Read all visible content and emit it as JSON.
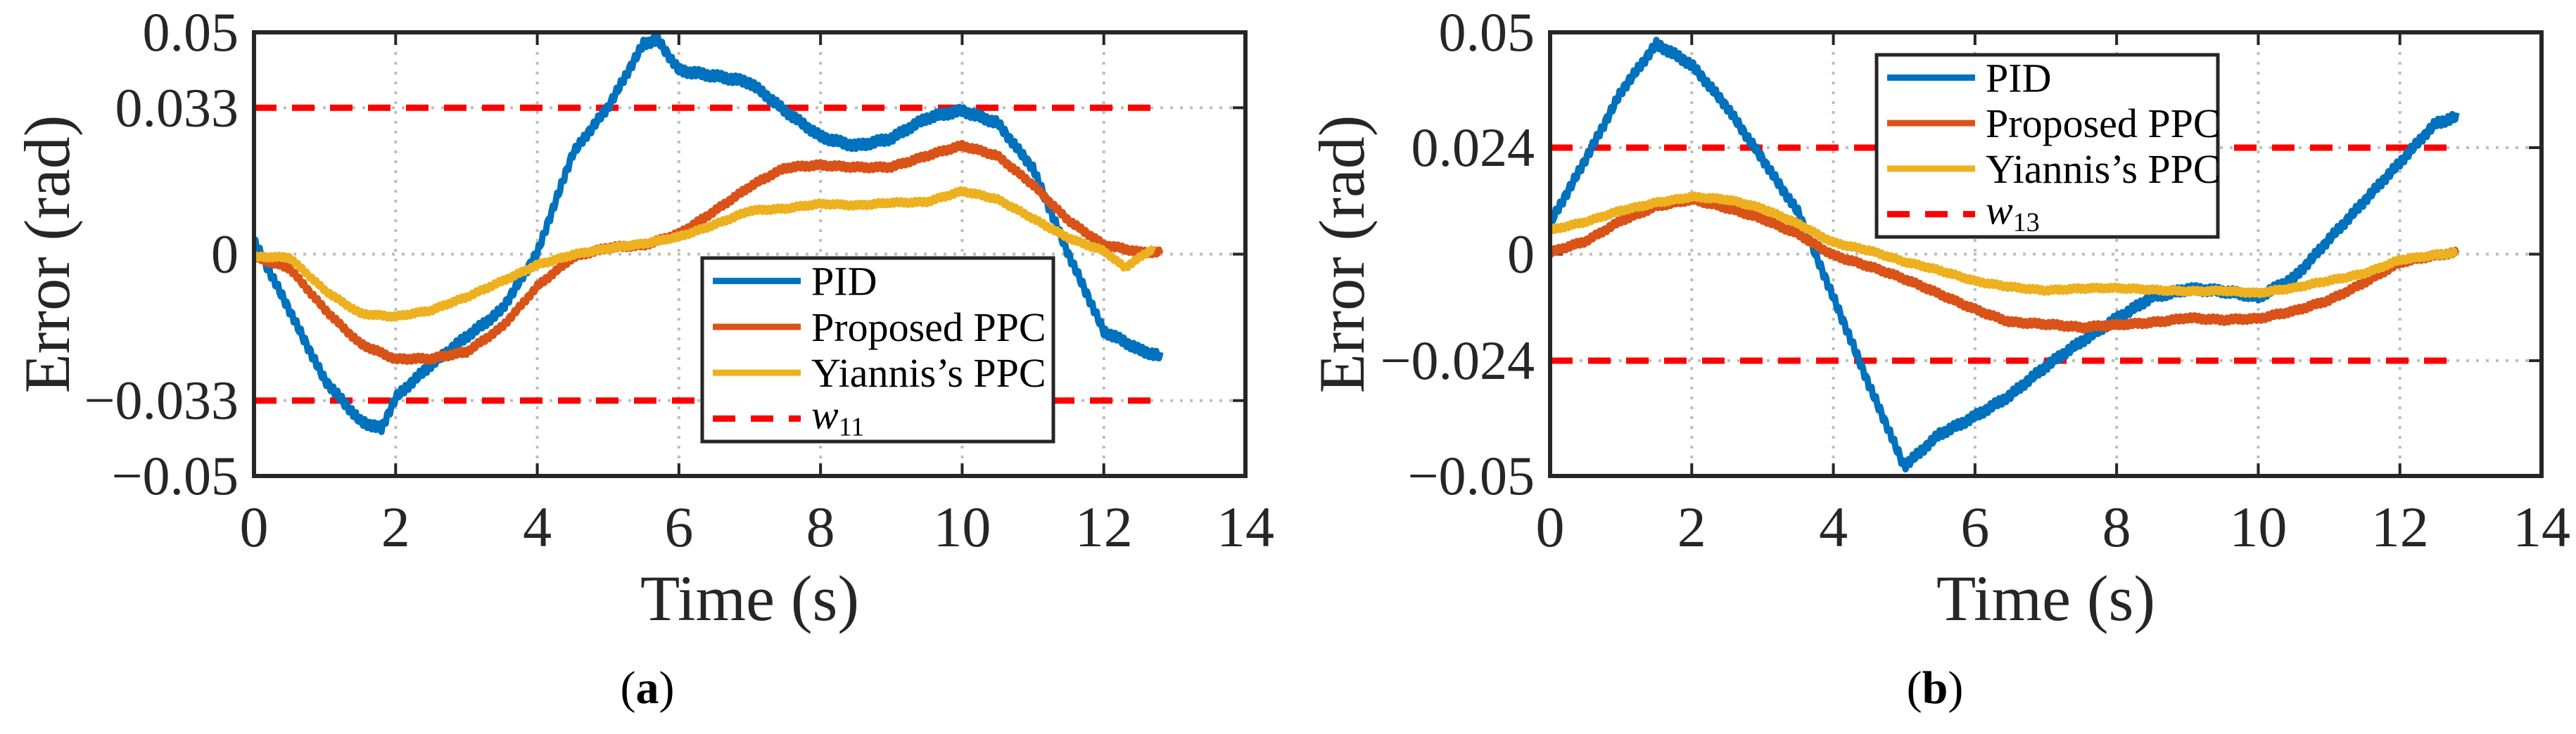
{
  "chart_data": [
    {
      "type": "line",
      "panel_label": "(a)",
      "caption_letter": "a",
      "xlabel": "Time (s)",
      "ylabel": "Error (rad)",
      "xlim": [
        0,
        14
      ],
      "ylim": [
        -0.05,
        0.05
      ],
      "xticks": [
        "0",
        "2",
        "4",
        "6",
        "8",
        "10",
        "12",
        "14"
      ],
      "yticks": [
        {
          "v": 0.05,
          "label": "0.05"
        },
        {
          "v": 0.033,
          "label": "0.033"
        },
        {
          "v": 0,
          "label": "0"
        },
        {
          "v": -0.033,
          "label": "−0.033"
        },
        {
          "v": -0.05,
          "label": "−0.05"
        }
      ],
      "grid": true,
      "legend_placement": "center-right",
      "bound": 0.033,
      "bound_label": {
        "base": "w",
        "sub": "11"
      },
      "series": [
        {
          "name": "PID",
          "color": "#0072BD",
          "x": [
            0,
            0.5,
            1,
            1.5,
            1.8,
            2,
            2.5,
            3,
            3.5,
            4,
            4.5,
            5,
            5.5,
            5.7,
            6,
            6.5,
            7,
            7.5,
            8,
            8.5,
            9,
            9.5,
            10,
            10.5,
            11,
            11.5,
            12,
            12.5,
            12.8
          ],
          "y": [
            0.003,
            -0.012,
            -0.028,
            -0.038,
            -0.04,
            -0.033,
            -0.025,
            -0.018,
            -0.012,
            0.0,
            0.022,
            0.033,
            0.048,
            0.049,
            0.042,
            0.04,
            0.038,
            0.032,
            0.027,
            0.025,
            0.026,
            0.03,
            0.032,
            0.03,
            0.02,
            0.0,
            -0.018,
            -0.022,
            -0.023
          ]
        },
        {
          "name": "Proposed PPC",
          "color": "#D95319",
          "x": [
            0,
            0.5,
            1,
            1.5,
            2,
            2.5,
            3,
            3.5,
            4,
            4.5,
            5,
            5.5,
            6,
            6.5,
            7,
            7.5,
            8,
            8.5,
            9,
            9.5,
            10,
            10.5,
            11,
            11.5,
            12,
            12.5,
            12.8
          ],
          "y": [
            -0.001,
            -0.003,
            -0.012,
            -0.02,
            -0.024,
            -0.024,
            -0.022,
            -0.016,
            -0.007,
            -0.001,
            0.001,
            0.002,
            0.005,
            0.01,
            0.015,
            0.019,
            0.02,
            0.02,
            0.02,
            0.022,
            0.024,
            0.022,
            0.016,
            0.008,
            0.002,
            0.0,
            0.0
          ]
        },
        {
          "name": "Yiannis’s PPC",
          "color": "#EDB120",
          "x": [
            0,
            0.5,
            1,
            1.5,
            2,
            2.5,
            3,
            3.5,
            4,
            4.5,
            5,
            5.5,
            6,
            6.5,
            7,
            7.5,
            8,
            8.5,
            9,
            9.5,
            10,
            10.5,
            11,
            11.5,
            12,
            12.3,
            12.7
          ],
          "y": [
            -0.001,
            -0.001,
            -0.008,
            -0.013,
            -0.014,
            -0.013,
            -0.01,
            -0.006,
            -0.002,
            0.0,
            0.001,
            0.002,
            0.004,
            0.007,
            0.01,
            0.01,
            0.011,
            0.011,
            0.012,
            0.012,
            0.014,
            0.012,
            0.008,
            0.004,
            0.001,
            -0.003,
            0.001
          ]
        }
      ]
    },
    {
      "type": "line",
      "panel_label": "(b)",
      "caption_letter": "b",
      "xlabel": "Time (s)",
      "ylabel": "Error (rad)",
      "xlim": [
        0,
        14
      ],
      "ylim": [
        -0.05,
        0.05
      ],
      "xticks": [
        "0",
        "2",
        "4",
        "6",
        "8",
        "10",
        "12",
        "14"
      ],
      "yticks": [
        {
          "v": 0.05,
          "label": "0.05"
        },
        {
          "v": 0.024,
          "label": "0.024"
        },
        {
          "v": 0,
          "label": "0"
        },
        {
          "v": -0.024,
          "label": "−0.024"
        },
        {
          "v": -0.05,
          "label": "−0.05"
        }
      ],
      "grid": true,
      "legend_placement": "top-center",
      "bound": 0.024,
      "bound_label": {
        "base": "w",
        "sub": "13"
      },
      "series": [
        {
          "name": "PID",
          "color": "#0072BD",
          "x": [
            0,
            0.5,
            1,
            1.5,
            2,
            2.5,
            3,
            3.5,
            4,
            4.5,
            5,
            5.5,
            6,
            6.5,
            7,
            7.5,
            8,
            8.5,
            9,
            9.5,
            10,
            10.5,
            11,
            11.5,
            12,
            12.5,
            12.8
          ],
          "y": [
            0.007,
            0.022,
            0.037,
            0.047,
            0.042,
            0.033,
            0.022,
            0.01,
            -0.01,
            -0.03,
            -0.048,
            -0.04,
            -0.036,
            -0.032,
            -0.026,
            -0.02,
            -0.014,
            -0.009,
            -0.008,
            -0.009,
            -0.01,
            -0.005,
            0.004,
            0.012,
            0.02,
            0.029,
            0.031
          ]
        },
        {
          "name": "Proposed PPC",
          "color": "#D95319",
          "x": [
            0,
            0.5,
            1,
            1.5,
            2,
            2.5,
            3,
            3.5,
            4,
            4.5,
            5,
            5.5,
            6,
            6.5,
            7,
            7.5,
            8,
            8.5,
            9,
            9.5,
            10,
            10.5,
            11,
            11.5,
            12,
            12.8
          ],
          "y": [
            0.0,
            0.003,
            0.008,
            0.011,
            0.012,
            0.01,
            0.008,
            0.005,
            0.0,
            -0.003,
            -0.006,
            -0.009,
            -0.012,
            -0.015,
            -0.016,
            -0.017,
            -0.016,
            -0.015,
            -0.014,
            -0.015,
            -0.015,
            -0.013,
            -0.01,
            -0.006,
            -0.002,
            0.0
          ]
        },
        {
          "name": "Yiannis’s PPC",
          "color": "#EDB120",
          "x": [
            0,
            0.5,
            1,
            1.5,
            2,
            2.5,
            3,
            3.5,
            4,
            4.5,
            5,
            5.5,
            6,
            6.5,
            7,
            7.5,
            8,
            8.5,
            9,
            9.5,
            10,
            10.5,
            11,
            11.5,
            12,
            12.8
          ],
          "y": [
            0.005,
            0.007,
            0.01,
            0.012,
            0.013,
            0.012,
            0.01,
            0.007,
            0.003,
            0.001,
            -0.002,
            -0.004,
            -0.006,
            -0.007,
            -0.008,
            -0.008,
            -0.008,
            -0.008,
            -0.008,
            -0.008,
            -0.009,
            -0.008,
            -0.006,
            -0.004,
            -0.001,
            0.0
          ]
        }
      ]
    }
  ]
}
